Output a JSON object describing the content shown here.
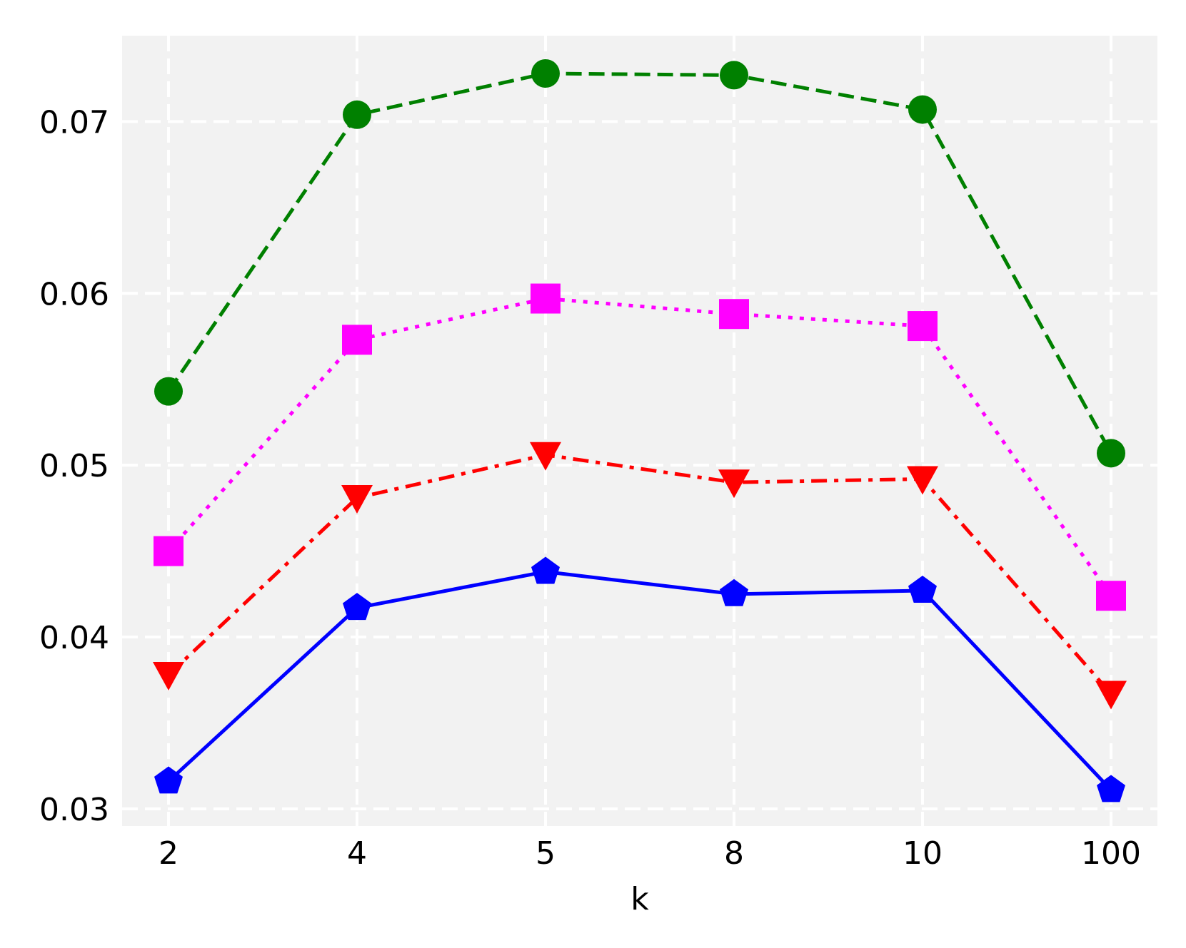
{
  "chart_data": {
    "type": "line",
    "title": "",
    "xlabel": "k",
    "ylabel": "",
    "categories": [
      "2",
      "4",
      "5",
      "8",
      "10",
      "100"
    ],
    "ylim": [
      0.029,
      0.075
    ],
    "yticks": [
      "0.03",
      "0.04",
      "0.05",
      "0.06",
      "0.07"
    ],
    "grid": true,
    "legend": "none",
    "background_color": "#f2f2f2",
    "grid_color": "#ffffff",
    "series": [
      {
        "values": [
          0.0543,
          0.0704,
          0.0728,
          0.0727,
          0.0707,
          0.0507
        ],
        "color": "#008000",
        "line_style": "dashed",
        "marker": "circle"
      },
      {
        "values": [
          0.045,
          0.0573,
          0.0597,
          0.0588,
          0.0581,
          0.0424
        ],
        "color": "#ff00ff",
        "line_style": "dotted",
        "marker": "square"
      },
      {
        "values": [
          0.0378,
          0.0481,
          0.0506,
          0.049,
          0.0492,
          0.0367
        ],
        "color": "#ff0000",
        "line_style": "dashdot",
        "marker": "triangle-down"
      },
      {
        "values": [
          0.0316,
          0.0417,
          0.0438,
          0.0425,
          0.0427,
          0.0311
        ],
        "color": "#0000ff",
        "line_style": "solid",
        "marker": "pentagon"
      }
    ]
  }
}
